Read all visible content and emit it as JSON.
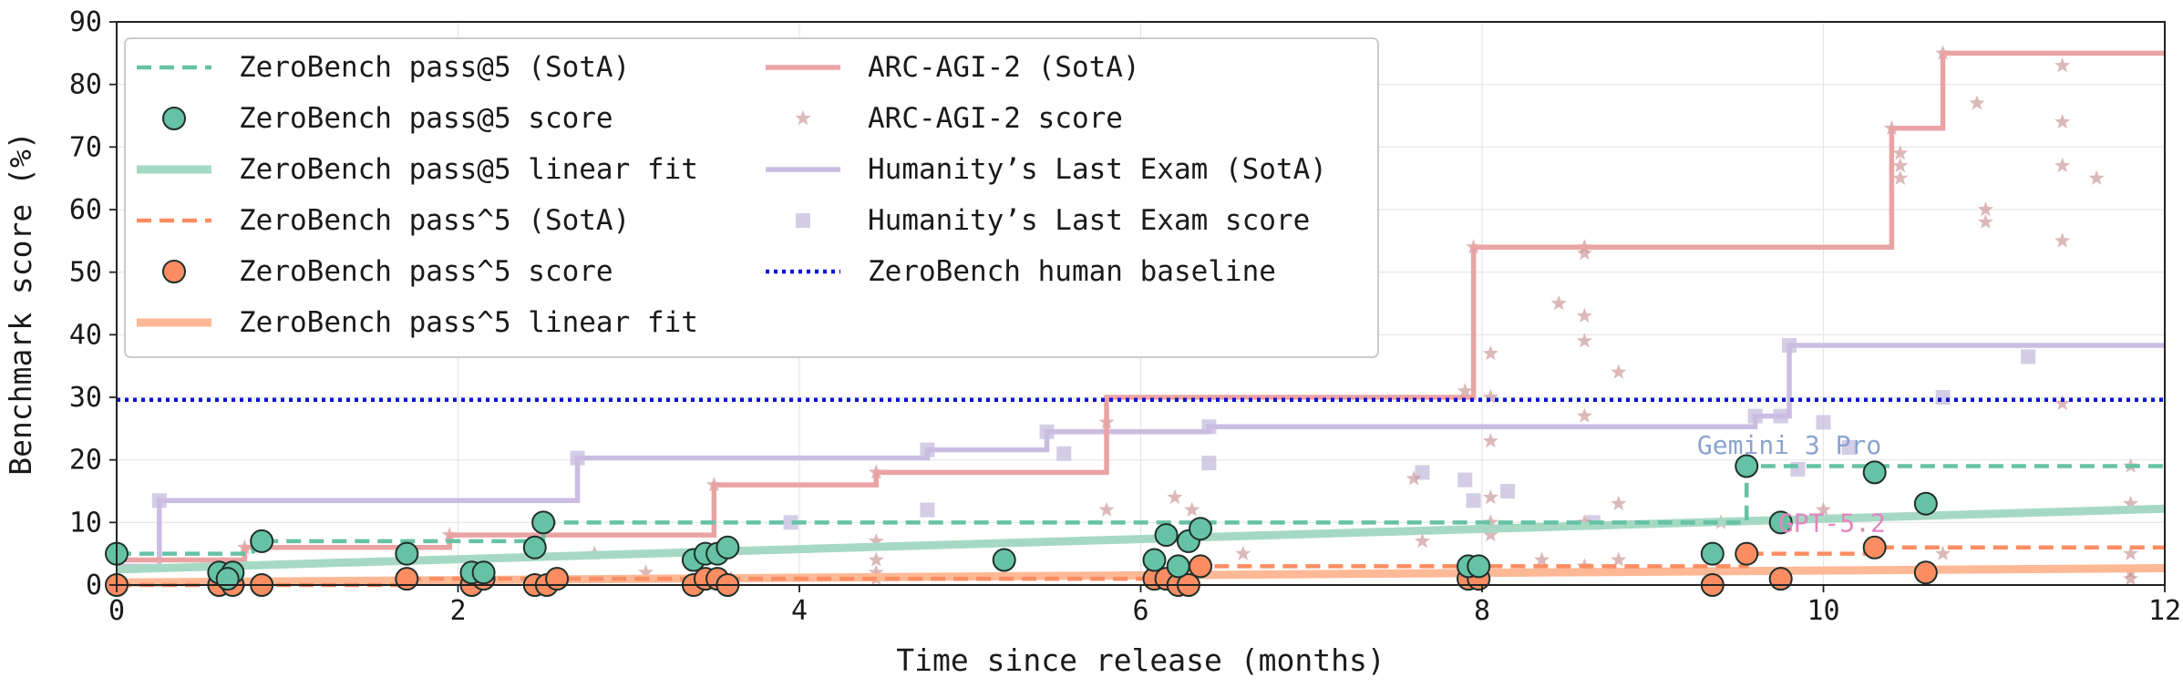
{
  "chart_data": {
    "type": "scatter",
    "xlabel": "Time since release (months)",
    "ylabel": "Benchmark score (%)",
    "xlim": [
      0,
      12
    ],
    "ylim": [
      0,
      90
    ],
    "xticks": [
      0,
      2,
      4,
      6,
      8,
      10,
      12
    ],
    "yticks": [
      0,
      10,
      20,
      30,
      40,
      50,
      60,
      70,
      80,
      90
    ],
    "grid": true,
    "legend_position": "top-left",
    "series": [
      {
        "name": "ZeroBench pass@5 (SotA)",
        "kind": "step",
        "color": "#66c2a5",
        "dash": "dashed",
        "points": [
          [
            0,
            5
          ],
          [
            0.8,
            7
          ],
          [
            2.5,
            10
          ],
          [
            9.55,
            19
          ],
          [
            12,
            19
          ]
        ]
      },
      {
        "name": "ZeroBench pass@5 score",
        "kind": "scatter",
        "marker": "circle",
        "color": "#66c2a5",
        "points": [
          [
            0,
            5
          ],
          [
            0.6,
            2
          ],
          [
            0.68,
            2
          ],
          [
            0.65,
            1
          ],
          [
            0.85,
            7
          ],
          [
            1.7,
            5
          ],
          [
            2.08,
            2
          ],
          [
            2.15,
            2
          ],
          [
            2.45,
            6
          ],
          [
            2.5,
            10
          ],
          [
            3.38,
            4
          ],
          [
            3.45,
            5
          ],
          [
            3.52,
            5
          ],
          [
            3.58,
            6
          ],
          [
            5.2,
            4
          ],
          [
            6.08,
            4
          ],
          [
            6.15,
            8
          ],
          [
            6.22,
            3
          ],
          [
            6.28,
            7
          ],
          [
            6.35,
            9
          ],
          [
            7.92,
            3
          ],
          [
            7.98,
            3
          ],
          [
            9.35,
            5
          ],
          [
            9.55,
            19
          ],
          [
            9.75,
            10
          ],
          [
            10.3,
            18
          ],
          [
            10.6,
            13
          ]
        ]
      },
      {
        "name": "ZeroBench pass@5 linear fit",
        "kind": "line",
        "color": "#a6d9c4",
        "points": [
          [
            0,
            2.5
          ],
          [
            12,
            12.2
          ]
        ]
      },
      {
        "name": "ZeroBench pass^5 (SotA)",
        "kind": "step",
        "color": "#fc8d62",
        "dash": "dashed",
        "points": [
          [
            0,
            0
          ],
          [
            1.7,
            1
          ],
          [
            6.35,
            3
          ],
          [
            9.55,
            5
          ],
          [
            10.3,
            6
          ],
          [
            12,
            6
          ]
        ]
      },
      {
        "name": "ZeroBench pass^5 score",
        "kind": "scatter",
        "marker": "circle",
        "color": "#fc8d62",
        "points": [
          [
            0,
            0
          ],
          [
            0.6,
            0
          ],
          [
            0.68,
            0
          ],
          [
            0.85,
            0
          ],
          [
            1.7,
            1
          ],
          [
            2.08,
            0
          ],
          [
            2.15,
            1
          ],
          [
            2.45,
            0
          ],
          [
            2.52,
            0
          ],
          [
            2.58,
            1
          ],
          [
            3.38,
            0
          ],
          [
            3.45,
            1
          ],
          [
            3.52,
            1
          ],
          [
            3.58,
            0
          ],
          [
            6.08,
            1
          ],
          [
            6.15,
            1
          ],
          [
            6.22,
            0
          ],
          [
            6.28,
            0
          ],
          [
            6.35,
            3
          ],
          [
            7.92,
            1
          ],
          [
            7.98,
            1
          ],
          [
            9.35,
            0
          ],
          [
            9.55,
            5
          ],
          [
            9.75,
            1
          ],
          [
            10.3,
            6
          ],
          [
            10.6,
            2
          ]
        ]
      },
      {
        "name": "ZeroBench pass^5 linear fit",
        "kind": "line",
        "color": "#fdb896",
        "points": [
          [
            0,
            0.4
          ],
          [
            12,
            2.7
          ]
        ]
      },
      {
        "name": "ARC-AGI-2 (SotA)",
        "kind": "step",
        "color": "#eaa3a3",
        "points": [
          [
            0,
            4
          ],
          [
            0.75,
            6
          ],
          [
            1.95,
            8
          ],
          [
            3.5,
            16
          ],
          [
            4.45,
            18
          ],
          [
            5.8,
            30
          ],
          [
            7.95,
            54
          ],
          [
            10.4,
            73
          ],
          [
            10.7,
            85
          ],
          [
            12,
            85
          ]
        ]
      },
      {
        "name": "ARC-AGI-2 score",
        "kind": "scatter",
        "marker": "star",
        "color": "#c48b8b",
        "points": [
          [
            0,
            1
          ],
          [
            0.6,
            1
          ],
          [
            0.75,
            6
          ],
          [
            1.95,
            8
          ],
          [
            2.1,
            3
          ],
          [
            2.8,
            5
          ],
          [
            3.1,
            2
          ],
          [
            3.5,
            16
          ],
          [
            3.6,
            1
          ],
          [
            4.45,
            18
          ],
          [
            4.45,
            7
          ],
          [
            4.45,
            4
          ],
          [
            4.45,
            2
          ],
          [
            4.45,
            1
          ],
          [
            5.8,
            26
          ],
          [
            5.8,
            12
          ],
          [
            6.2,
            14
          ],
          [
            6.3,
            12
          ],
          [
            6.6,
            5
          ],
          [
            7.6,
            17
          ],
          [
            7.65,
            7
          ],
          [
            7.9,
            31
          ],
          [
            7.95,
            54
          ],
          [
            8.05,
            37
          ],
          [
            8.05,
            30
          ],
          [
            8.05,
            23
          ],
          [
            8.05,
            14
          ],
          [
            8.05,
            10
          ],
          [
            8.05,
            8
          ],
          [
            8.35,
            4
          ],
          [
            8.45,
            45
          ],
          [
            8.6,
            54
          ],
          [
            8.6,
            53
          ],
          [
            8.6,
            43
          ],
          [
            8.6,
            39
          ],
          [
            8.6,
            27
          ],
          [
            8.6,
            10
          ],
          [
            8.6,
            3
          ],
          [
            8.8,
            34
          ],
          [
            8.8,
            13
          ],
          [
            8.8,
            4
          ],
          [
            9.4,
            10
          ],
          [
            10,
            12
          ],
          [
            10.4,
            73
          ],
          [
            10.45,
            69
          ],
          [
            10.45,
            67
          ],
          [
            10.45,
            65
          ],
          [
            10.7,
            85
          ],
          [
            10.7,
            5
          ],
          [
            10.9,
            77
          ],
          [
            10.95,
            60
          ],
          [
            10.95,
            58
          ],
          [
            11.4,
            83
          ],
          [
            11.4,
            74
          ],
          [
            11.4,
            67
          ],
          [
            11.4,
            55
          ],
          [
            11.6,
            65
          ],
          [
            11.4,
            29
          ],
          [
            11.8,
            19
          ],
          [
            11.8,
            13
          ],
          [
            11.8,
            5
          ],
          [
            11.8,
            2
          ],
          [
            11.8,
            1
          ]
        ]
      },
      {
        "name": "Humanity’s Last Exam (SotA)",
        "kind": "step",
        "color": "#cbbde2",
        "points": [
          [
            0,
            3
          ],
          [
            0.25,
            13.5
          ],
          [
            2.7,
            20.3
          ],
          [
            4.75,
            21.6
          ],
          [
            5.45,
            24.5
          ],
          [
            6.4,
            25.3
          ],
          [
            9.6,
            27
          ],
          [
            9.8,
            38.3
          ],
          [
            12,
            38.3
          ]
        ]
      },
      {
        "name": "Humanity’s Last Exam score",
        "kind": "scatter",
        "marker": "square",
        "color": "#c8c0e0",
        "points": [
          [
            0.25,
            13.5
          ],
          [
            2.7,
            20.3
          ],
          [
            3.95,
            10
          ],
          [
            4.75,
            21.6
          ],
          [
            4.75,
            12
          ],
          [
            5.45,
            24.5
          ],
          [
            5.55,
            21
          ],
          [
            6.4,
            25.3
          ],
          [
            6.4,
            19.5
          ],
          [
            7.65,
            18
          ],
          [
            7.9,
            16.8
          ],
          [
            7.95,
            13.5
          ],
          [
            8.15,
            15
          ],
          [
            8.65,
            10
          ],
          [
            9.6,
            27
          ],
          [
            9.75,
            27
          ],
          [
            9.8,
            38.3
          ],
          [
            9.85,
            18.5
          ],
          [
            10,
            26
          ],
          [
            10.15,
            22
          ],
          [
            10.7,
            30
          ],
          [
            11.2,
            36.5
          ]
        ]
      },
      {
        "name": "ZeroBench human baseline",
        "kind": "hline",
        "color": "#0a14d8",
        "dash": "dotted",
        "points": [
          [
            0,
            29.6
          ],
          [
            12,
            29.6
          ]
        ]
      }
    ],
    "annotations": [
      {
        "text": "Gemini 3 Pro",
        "x": 9.8,
        "y": 21,
        "color": "#8ca3cf"
      },
      {
        "text": "GPT-5.2",
        "x": 10.05,
        "y": 8.5,
        "color": "#e386c0"
      }
    ]
  }
}
